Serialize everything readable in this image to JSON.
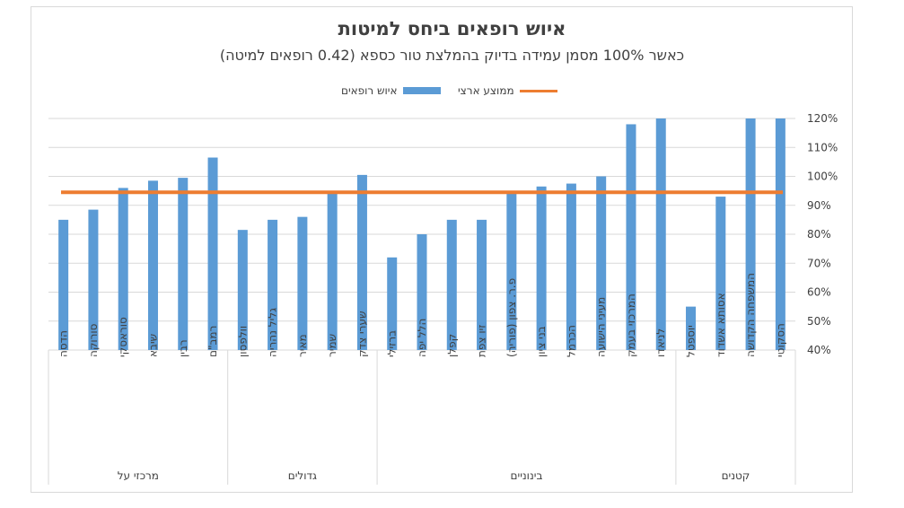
{
  "colors": {
    "bar": "#5b9bd5",
    "average_line": "#ed7d31",
    "grid": "#d9d9d9",
    "text": "#404040"
  },
  "chart_data": {
    "type": "bar",
    "title": "איוש רופאים ביחס למיטות",
    "subtitle": "כאשר 100% מסמן עמידה בדיוק בהמלצת טור כספא (0.42 רופאים למיטה)",
    "legend": {
      "position": "top",
      "bar_series": "איוש רופאים",
      "line_series": "ממוצע ארצי"
    },
    "ylim": [
      0.4,
      1.2
    ],
    "yticks": [
      "40%",
      "50%",
      "60%",
      "70%",
      "80%",
      "90%",
      "100%",
      "110%",
      "120%"
    ],
    "y_axis_side": "right",
    "grid": true,
    "national_average": 0.945,
    "series": [
      {
        "name": "איוש רופאים",
        "type": "bar",
        "values": [
          0.85,
          0.885,
          0.96,
          0.985,
          0.995,
          1.065,
          0.815,
          0.85,
          0.86,
          0.94,
          1.005,
          0.72,
          0.8,
          0.85,
          0.85,
          0.945,
          0.965,
          0.975,
          1.0,
          1.18,
          1.2,
          0.55,
          0.93,
          1.2,
          1.2
        ]
      },
      {
        "name": "ממוצע ארצי",
        "type": "line",
        "value": 0.945
      }
    ],
    "categories": [
      "הדסה",
      "סורוקה",
      "סוראסקי",
      "שיבא",
      "רבין",
      "רמב\"ם",
      "וולפסון",
      "גליל נהריה",
      "מאיר",
      "שמיר",
      "שערי צדק",
      "ברזילי",
      "הלל יפה",
      "קפלן",
      "זיו צפת",
      "פ.ר. צפון (פוריה)",
      "בני ציון",
      "הכרמל",
      "מעיני הישועה",
      "המרכזי בעמק",
      "לניאדו",
      "יוספטל",
      "אסותא אשדוד",
      "המשפחה הקדושה",
      "הסקוטי"
    ],
    "groups": [
      {
        "label": "מרכזי על",
        "count": 6
      },
      {
        "label": "גדולים",
        "count": 5
      },
      {
        "label": "בינוניים",
        "count": 10
      },
      {
        "label": "קטנים",
        "count": 4
      }
    ]
  }
}
